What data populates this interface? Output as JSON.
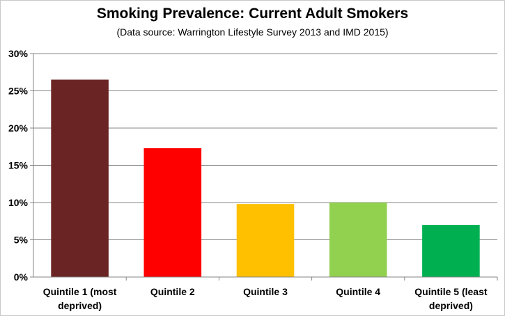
{
  "chart_data": {
    "type": "bar",
    "title": "Smoking Prevalence: Current Adult Smokers",
    "subtitle": "(Data source: Warrington Lifestyle Survey 2013 and IMD 2015)",
    "xlabel": "",
    "ylabel": "",
    "ylim": [
      0,
      30
    ],
    "y_ticks": [
      "0%",
      "5%",
      "10%",
      "15%",
      "20%",
      "25%",
      "30%"
    ],
    "y_tick_values": [
      0,
      5,
      10,
      15,
      20,
      25,
      30
    ],
    "grid": true,
    "categories": [
      [
        "Quintile 1 (most",
        "deprived)"
      ],
      [
        "Quintile 2"
      ],
      [
        "Quintile 3"
      ],
      [
        "Quintile 4"
      ],
      [
        "Quintile 5 (least",
        "deprived)"
      ]
    ],
    "values": [
      26.5,
      17.3,
      9.8,
      10.0,
      7.0
    ],
    "colors": [
      "#6B2424",
      "#FF0000",
      "#FFC000",
      "#92D050",
      "#00B050"
    ]
  }
}
